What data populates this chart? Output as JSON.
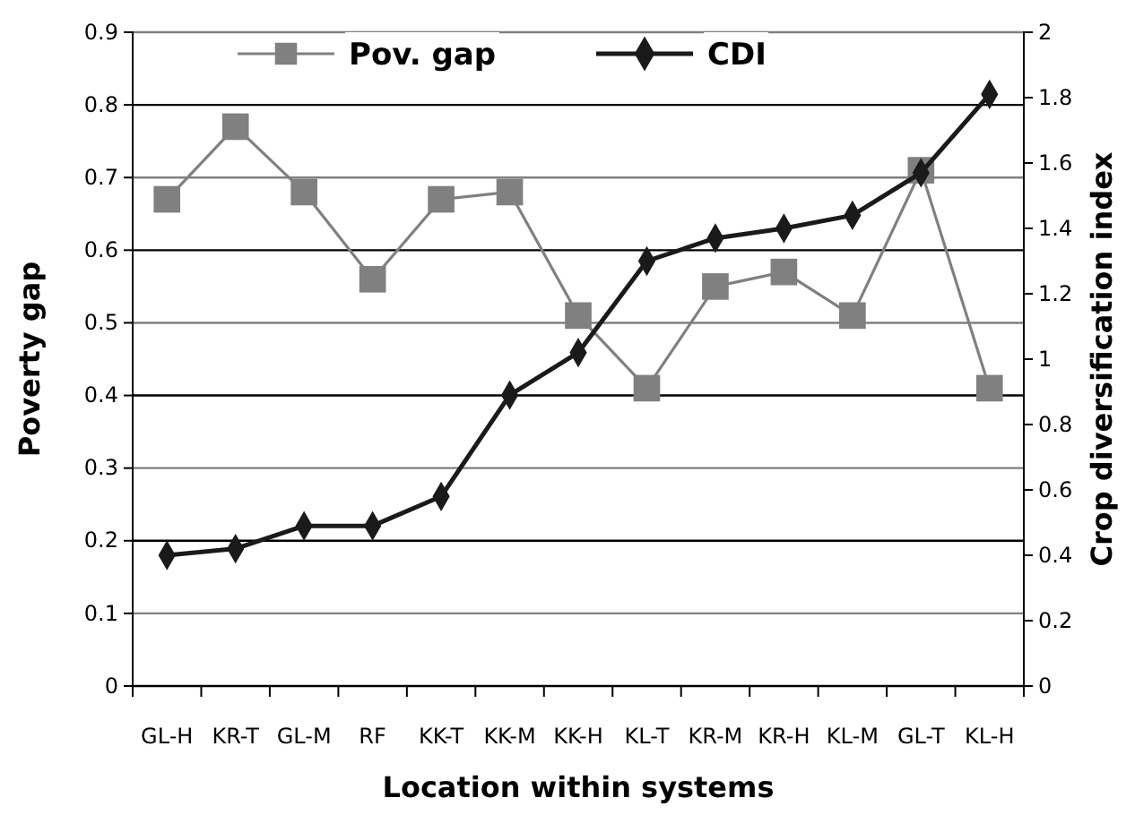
{
  "chart_data": {
    "type": "line",
    "xlabel": "Location within systems",
    "ylabel": "Poverty gap",
    "y2label": "Crop diversification index",
    "categories": [
      "GL-H",
      "KR-T",
      "GL-M",
      "RF",
      "KK-T",
      "KK-M",
      "KK-H",
      "KL-T",
      "KR-M",
      "KR-H",
      "KL-M",
      "GL-T",
      "KL-H"
    ],
    "series": [
      {
        "name": "Pov. gap",
        "color": "#808080",
        "marker": "square",
        "values": [
          0.67,
          0.77,
          0.68,
          0.56,
          0.67,
          0.68,
          0.51,
          0.41,
          0.55,
          0.57,
          0.51,
          0.71,
          0.41
        ]
      },
      {
        "name": "CDI",
        "color": "#1a1a1a",
        "marker": "diamond",
        "axis": "y2",
        "values": [
          0.4,
          0.42,
          0.49,
          0.49,
          0.58,
          0.89,
          1.02,
          1.3,
          1.37,
          1.4,
          1.44,
          1.57,
          1.81
        ]
      }
    ],
    "ylim": [
      0,
      0.9
    ],
    "yticks": [
      0,
      0.1,
      0.2,
      0.3,
      0.4,
      0.5,
      0.6,
      0.7,
      0.8,
      0.9
    ],
    "y2lim": [
      0,
      2
    ],
    "y2ticks": [
      0,
      0.2,
      0.4,
      0.6,
      0.8,
      1,
      1.2,
      1.4,
      1.6,
      1.8,
      2
    ],
    "grid": "y",
    "legend": "top"
  }
}
